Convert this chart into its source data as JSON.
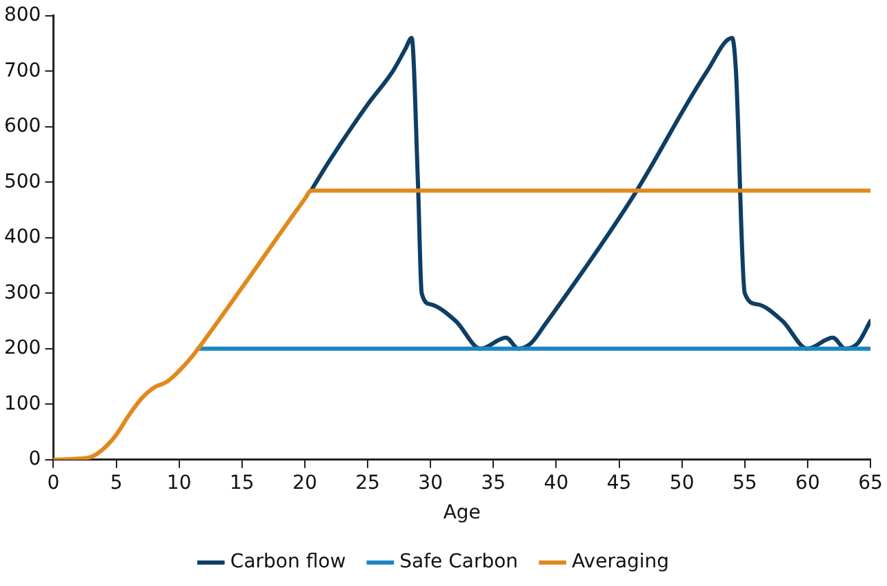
{
  "chart_data": {
    "type": "line",
    "xlabel": "Age",
    "xlim": [
      0,
      65
    ],
    "xticks": [
      0,
      5,
      10,
      15,
      20,
      25,
      30,
      35,
      40,
      45,
      50,
      55,
      60,
      65
    ],
    "ylim": [
      0,
      800
    ],
    "yticks": [
      0,
      100,
      200,
      300,
      400,
      500,
      600,
      700,
      800
    ],
    "grid": false,
    "legend": "bottom",
    "marker": "none",
    "line_style": "solid",
    "series": [
      {
        "name": "Carbon flow",
        "color": "#0e3e64",
        "x": [
          20.5,
          22,
          25,
          27,
          28,
          28.5,
          29,
          29.3,
          30,
          32,
          34,
          36,
          37,
          38,
          39,
          46,
          52,
          54,
          54.3,
          55,
          56,
          58,
          60,
          62,
          63,
          64,
          65
        ],
        "values": [
          485,
          540,
          640,
          700,
          740,
          760,
          500,
          300,
          280,
          250,
          200,
          220,
          200,
          210,
          240,
          470,
          700,
          760,
          700,
          300,
          280,
          250,
          200,
          220,
          200,
          210,
          250
        ]
      },
      {
        "name": "Safe Carbon",
        "color": "#1b86c4",
        "x": [
          11.5,
          65
        ],
        "values": [
          200,
          200
        ]
      },
      {
        "name": "Averaging",
        "color": "#e0891c",
        "x": [
          0,
          2,
          3,
          4,
          5,
          6,
          7,
          8,
          9,
          10,
          11,
          12,
          15,
          20,
          20.5,
          65
        ],
        "values": [
          0,
          2,
          5,
          20,
          45,
          80,
          110,
          130,
          140,
          160,
          185,
          215,
          310,
          470,
          485,
          485
        ]
      }
    ]
  }
}
